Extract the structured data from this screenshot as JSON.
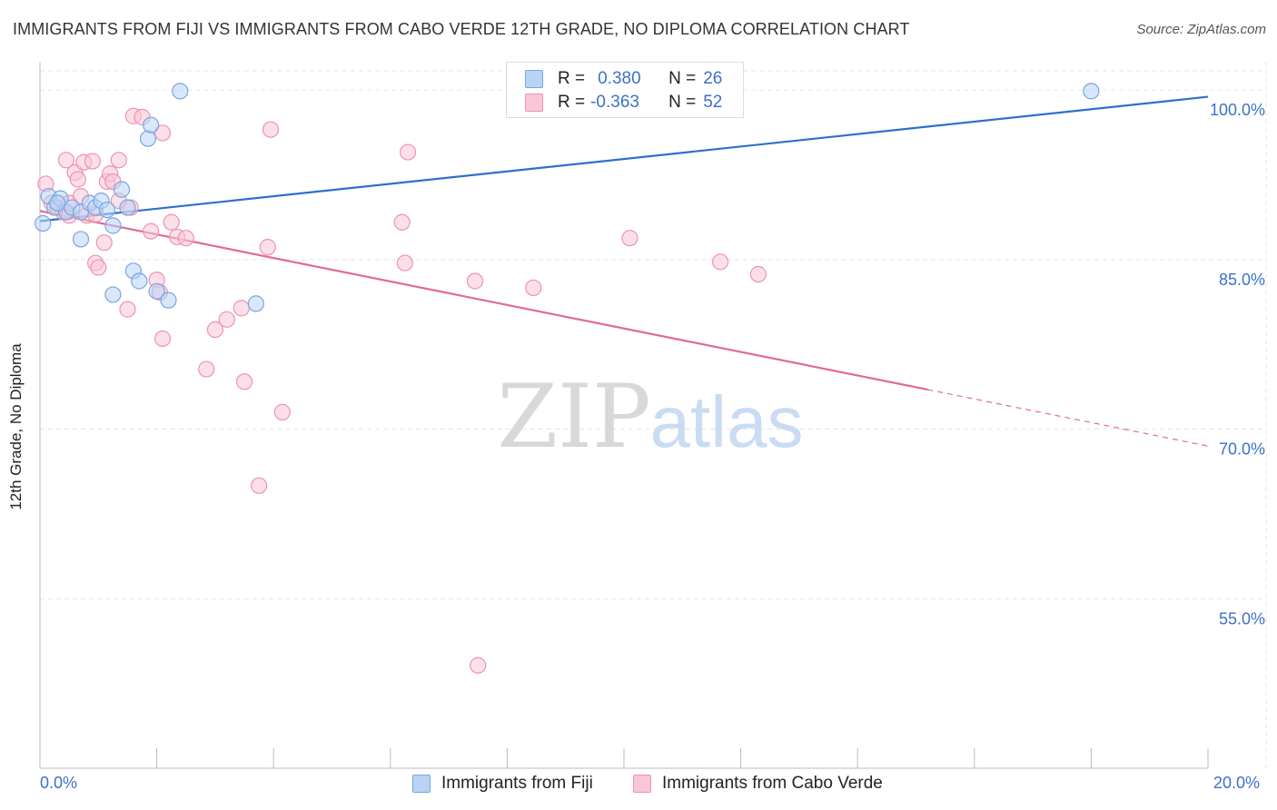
{
  "header": {
    "title": "IMMIGRANTS FROM FIJI VS IMMIGRANTS FROM CABO VERDE 12TH GRADE, NO DIPLOMA CORRELATION CHART",
    "source": "Source: ZipAtlas.com"
  },
  "watermark": {
    "zip": "ZIP",
    "atlas": "atlas"
  },
  "legend": {
    "r_label": "R =",
    "n_label": "N =",
    "fiji": {
      "r": "0.380",
      "n": "26"
    },
    "cabo": {
      "r": "-0.363",
      "n": "52"
    }
  },
  "colors": {
    "fiji_fill": "#b8d3f5",
    "fiji_stroke": "#7aa5e0",
    "fiji_line": "#2f6fcc",
    "cabo_fill": "#f9c6d6",
    "cabo_stroke": "#ee92b1",
    "cabo_line": "#e06a98",
    "axis_text": "#3b72c8",
    "grid": "#e3e3e3"
  },
  "chart_data": {
    "type": "scatter",
    "title": "IMMIGRANTS FROM FIJI VS IMMIGRANTS FROM CABO VERDE 12TH GRADE, NO DIPLOMA CORRELATION CHART",
    "xlabel": "",
    "ylabel": "12th Grade, No Diploma",
    "xlim": [
      0,
      20
    ],
    "ylim": [
      40,
      102.5
    ],
    "x_tick_labels": {
      "left": "0.0%",
      "right": "20.0%"
    },
    "y_ticks": [
      {
        "value": 100,
        "label": "100.0%"
      },
      {
        "value": 85,
        "label": "85.0%"
      },
      {
        "value": 70,
        "label": "70.0%"
      },
      {
        "value": 55,
        "label": "55.0%"
      }
    ],
    "grid": true,
    "legend_position": "bottom",
    "series": [
      {
        "name": "Immigrants from Fiji",
        "points": [
          [
            0.05,
            88.2
          ],
          [
            0.15,
            90.6
          ],
          [
            0.25,
            89.6
          ],
          [
            0.35,
            90.4
          ],
          [
            0.45,
            89.2
          ],
          [
            0.55,
            89.6
          ],
          [
            0.7,
            89.2
          ],
          [
            0.85,
            90.0
          ],
          [
            0.95,
            89.6
          ],
          [
            1.05,
            90.2
          ],
          [
            1.15,
            89.4
          ],
          [
            1.25,
            88.0
          ],
          [
            1.4,
            91.2
          ],
          [
            1.5,
            89.6
          ],
          [
            0.7,
            86.8
          ],
          [
            1.6,
            84.0
          ],
          [
            1.7,
            83.1
          ],
          [
            1.85,
            95.7
          ],
          [
            1.9,
            96.9
          ],
          [
            2.0,
            82.2
          ],
          [
            2.2,
            81.4
          ],
          [
            2.4,
            99.9
          ],
          [
            1.25,
            81.9
          ],
          [
            3.7,
            81.1
          ],
          [
            18.0,
            99.9
          ],
          [
            0.3,
            90.0
          ]
        ],
        "trend": {
          "x": [
            0,
            20
          ],
          "y": [
            88.4,
            99.4
          ]
        }
      },
      {
        "name": "Immigrants from Cabo Verde",
        "points": [
          [
            0.1,
            91.7
          ],
          [
            0.2,
            90.0
          ],
          [
            0.3,
            89.6
          ],
          [
            0.4,
            89.2
          ],
          [
            0.5,
            88.9
          ],
          [
            0.5,
            90.0
          ],
          [
            0.45,
            93.8
          ],
          [
            0.6,
            92.7
          ],
          [
            0.65,
            92.1
          ],
          [
            0.7,
            90.6
          ],
          [
            0.75,
            93.6
          ],
          [
            0.8,
            88.9
          ],
          [
            0.9,
            93.7
          ],
          [
            0.95,
            84.7
          ],
          [
            1.0,
            84.3
          ],
          [
            1.1,
            86.5
          ],
          [
            1.15,
            91.9
          ],
          [
            1.2,
            92.6
          ],
          [
            1.25,
            91.9
          ],
          [
            1.35,
            90.2
          ],
          [
            1.35,
            93.8
          ],
          [
            1.5,
            80.6
          ],
          [
            1.6,
            97.7
          ],
          [
            1.75,
            97.6
          ],
          [
            1.9,
            87.5
          ],
          [
            2.0,
            83.2
          ],
          [
            2.05,
            82.1
          ],
          [
            2.1,
            78.0
          ],
          [
            2.1,
            96.2
          ],
          [
            2.25,
            88.3
          ],
          [
            2.35,
            87.0
          ],
          [
            2.5,
            86.9
          ],
          [
            2.85,
            75.3
          ],
          [
            3.0,
            78.8
          ],
          [
            3.2,
            79.7
          ],
          [
            3.45,
            80.7
          ],
          [
            3.5,
            74.2
          ],
          [
            3.75,
            65.0
          ],
          [
            3.9,
            86.1
          ],
          [
            3.95,
            96.5
          ],
          [
            4.15,
            71.5
          ],
          [
            6.2,
            88.3
          ],
          [
            6.25,
            84.7
          ],
          [
            6.3,
            94.5
          ],
          [
            7.45,
            83.1
          ],
          [
            7.5,
            49.1
          ],
          [
            8.45,
            82.5
          ],
          [
            10.1,
            86.9
          ],
          [
            11.65,
            84.8
          ],
          [
            12.3,
            83.7
          ],
          [
            0.95,
            89.0
          ],
          [
            1.55,
            89.6
          ]
        ],
        "trend": {
          "x": [
            0,
            15.2
          ],
          "y": [
            89.3,
            73.5
          ]
        },
        "trend_dashed": {
          "x": [
            15.2,
            20
          ],
          "y": [
            73.5,
            68.5
          ]
        }
      }
    ]
  },
  "bottom_legend": {
    "fiji_label": "Immigrants from Fiji",
    "cabo_label": "Immigrants from Cabo Verde"
  }
}
